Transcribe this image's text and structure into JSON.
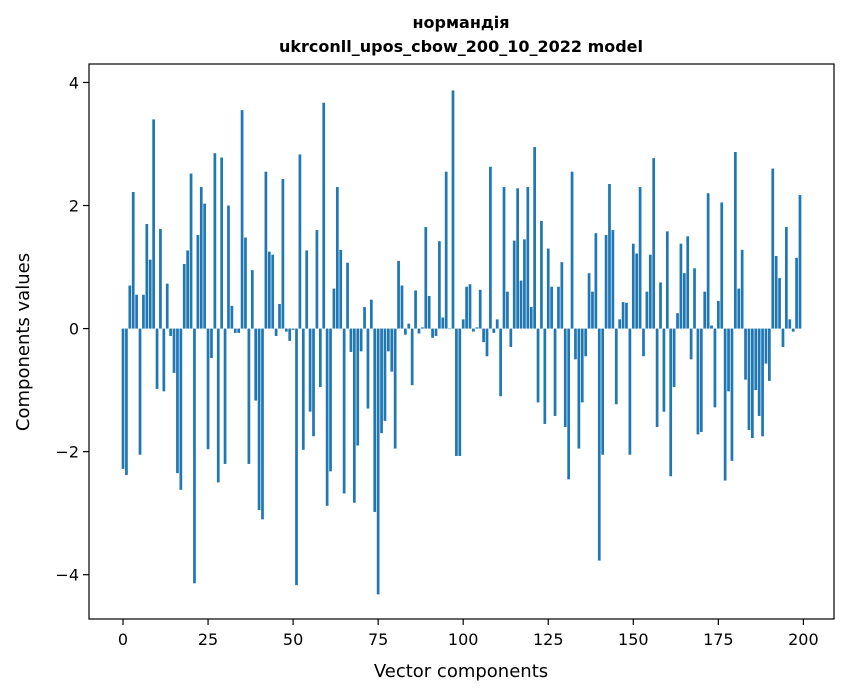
{
  "chart_data": {
    "type": "bar",
    "title": "нормандія",
    "subtitle": "ukrconll_upos_cbow_200_10_2022 model",
    "xlabel": "Vector components",
    "ylabel": "Components values",
    "xlim": [
      -10,
      209
    ],
    "ylim": [
      -4.72,
      4.3
    ],
    "xticks": [
      0,
      25,
      50,
      75,
      100,
      125,
      150,
      175,
      200
    ],
    "yticks": [
      -4,
      -2,
      0,
      2,
      4
    ],
    "ytick_labels": [
      "−4",
      "−2",
      "0",
      "2",
      "4"
    ],
    "grid": false,
    "color": "#1f77b4",
    "values": [
      -2.28,
      -2.38,
      0.7,
      2.22,
      0.55,
      -2.05,
      0.55,
      1.7,
      1.12,
      3.4,
      -0.98,
      1.62,
      -1.02,
      0.73,
      -0.12,
      -0.72,
      -2.35,
      -2.62,
      1.05,
      1.27,
      2.52,
      -4.14,
      1.52,
      2.3,
      2.03,
      -1.96,
      -0.48,
      2.85,
      -2.5,
      2.78,
      -2.2,
      2.0,
      0.37,
      -0.07,
      -0.07,
      3.55,
      1.48,
      -2.2,
      0.95,
      -1.17,
      -2.95,
      -3.1,
      2.55,
      1.25,
      1.2,
      -0.12,
      0.4,
      2.43,
      -0.05,
      -0.2,
      -0.02,
      -4.17,
      2.83,
      -1.97,
      1.27,
      -1.35,
      -1.75,
      1.6,
      -0.95,
      3.67,
      -2.88,
      -2.32,
      0.65,
      2.3,
      1.28,
      -2.68,
      1.07,
      -0.38,
      -2.83,
      -1.9,
      -0.37,
      0.35,
      -1.3,
      0.47,
      -2.98,
      -4.32,
      -1.7,
      -1.5,
      -0.37,
      -0.7,
      -1.95,
      1.1,
      0.7,
      -0.1,
      0.08,
      -0.92,
      0.62,
      -0.08,
      0.02,
      1.65,
      0.53,
      -0.15,
      -0.12,
      1.42,
      0.18,
      2.55,
      0.0,
      3.87,
      -2.07,
      -2.07,
      0.15,
      0.68,
      0.72,
      -0.05,
      0.02,
      0.63,
      -0.22,
      -0.45,
      2.63,
      -0.07,
      0.15,
      -1.1,
      2.3,
      0.6,
      -0.3,
      1.43,
      2.28,
      0.78,
      1.45,
      2.3,
      0.35,
      2.95,
      -1.2,
      1.75,
      -1.55,
      1.3,
      0.68,
      -1.42,
      0.68,
      1.08,
      -1.6,
      -2.45,
      2.55,
      -0.5,
      -1.95,
      -1.2,
      -0.45,
      0.9,
      0.6,
      1.55,
      -3.77,
      -2.05,
      1.52,
      2.35,
      1.6,
      -1.23,
      0.15,
      0.43,
      0.42,
      -2.05,
      1.38,
      1.22,
      2.3,
      -0.45,
      0.6,
      1.2,
      2.77,
      -1.6,
      0.75,
      -1.35,
      1.58,
      -2.4,
      -0.95,
      0.25,
      1.38,
      0.9,
      1.5,
      -0.5,
      0.98,
      -1.72,
      -1.68,
      0.6,
      2.2,
      0.05,
      -1.28,
      0.45,
      2.05,
      -2.47,
      -1.02,
      -2.15,
      2.87,
      0.65,
      1.28,
      -0.83,
      -1.65,
      -1.78,
      -1.0,
      -1.42,
      -1.75,
      -0.57,
      -0.85,
      2.6,
      1.18,
      0.82,
      -0.3,
      1.65,
      0.15,
      -0.05,
      1.15,
      2.17
    ]
  }
}
